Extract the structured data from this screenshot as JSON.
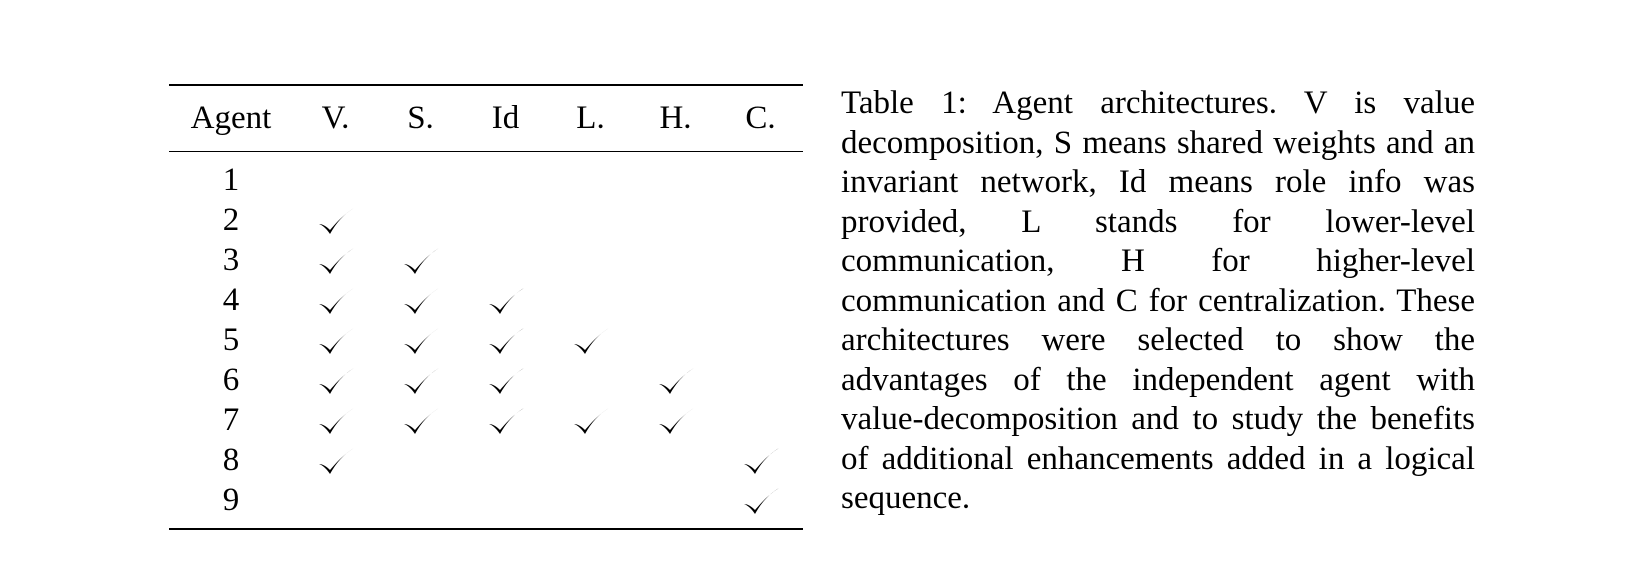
{
  "table": {
    "columns": [
      "Agent",
      "V.",
      "S.",
      "Id",
      "L.",
      "H.",
      "C."
    ],
    "rows": [
      {
        "agent": "1",
        "checks": [
          false,
          false,
          false,
          false,
          false,
          false
        ]
      },
      {
        "agent": "2",
        "checks": [
          true,
          false,
          false,
          false,
          false,
          false
        ]
      },
      {
        "agent": "3",
        "checks": [
          true,
          true,
          false,
          false,
          false,
          false
        ]
      },
      {
        "agent": "4",
        "checks": [
          true,
          true,
          true,
          false,
          false,
          false
        ]
      },
      {
        "agent": "5",
        "checks": [
          true,
          true,
          true,
          true,
          false,
          false
        ]
      },
      {
        "agent": "6",
        "checks": [
          true,
          true,
          true,
          false,
          true,
          false
        ]
      },
      {
        "agent": "7",
        "checks": [
          true,
          true,
          true,
          true,
          true,
          false
        ]
      },
      {
        "agent": "8",
        "checks": [
          true,
          false,
          false,
          false,
          false,
          true
        ]
      },
      {
        "agent": "9",
        "checks": [
          false,
          false,
          false,
          false,
          false,
          true
        ]
      }
    ]
  },
  "caption": {
    "text": "Table 1: Agent architectures. V is value decomposition, S means shared weights and an invariant network, Id means role info was provided, L stands for lower-level communication, H for higher-level communication and C for centralization. These architectures were selected to show the advantages of the independent agent with value-decomposition and to study the benefits of additional enhancements added in a logical sequence."
  },
  "icons": {
    "check": "checkmark-icon"
  }
}
